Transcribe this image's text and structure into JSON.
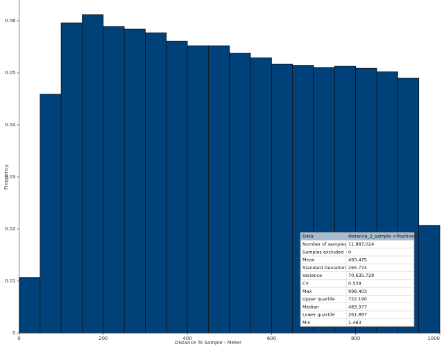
{
  "chart_data": {
    "type": "histogram",
    "xlabel": "Distance To Sample - Meter",
    "ylabel": "Frequency",
    "bins": [
      0,
      50,
      100,
      150,
      200,
      250,
      300,
      350,
      400,
      450,
      500,
      550,
      600,
      650,
      700,
      750,
      800,
      850,
      900,
      950,
      1000
    ],
    "values": [
      0.0107,
      0.0459,
      0.0596,
      0.0612,
      0.0589,
      0.0584,
      0.0577,
      0.0561,
      0.0552,
      0.0552,
      0.0538,
      0.0529,
      0.0517,
      0.0514,
      0.051,
      0.0513,
      0.0509,
      0.0502,
      0.049,
      0.0207
    ],
    "color": "#00417a",
    "xlim": [
      0,
      1000
    ],
    "xticks": [
      0,
      200,
      400,
      600,
      800,
      1000
    ],
    "ylim": [
      0,
      0.064
    ],
    "yticks": [
      0,
      0.01,
      0.02,
      0.03,
      0.04,
      0.05,
      0.06
    ],
    "stats_table": {
      "header": [
        "Data:",
        "distance_2_sample <Positive>"
      ],
      "rows": [
        [
          "Number of samples",
          "11,887,024"
        ],
        [
          "Samples excluded",
          "0"
        ],
        [
          "Mean",
          "493.475"
        ],
        [
          "Standard Deviation",
          "265.774"
        ],
        [
          "Variance",
          "70,635.729"
        ],
        [
          "CV",
          "0.539"
        ],
        [
          "Max",
          "998.403"
        ],
        [
          "Upper quartile",
          "722.190"
        ],
        [
          "Median",
          "483.377"
        ],
        [
          "Lower quartile",
          "261.897"
        ],
        [
          "Min",
          "1.483"
        ]
      ]
    }
  }
}
